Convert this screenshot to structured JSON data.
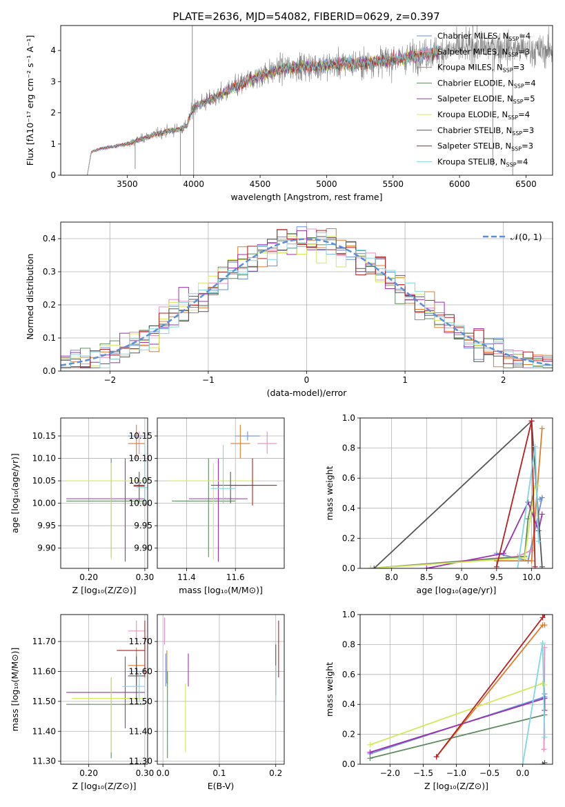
{
  "figure_title": "PLATE=2636, MJD=54082, FIBERID=0629, z=0.397",
  "series_styles": [
    {
      "name": "Chabrier MILES, N",
      "sub": "SSP",
      "tail": "=4",
      "color": "#6a8fd8"
    },
    {
      "name": "Salpeter MILES, N",
      "sub": "SSP",
      "tail": "=3",
      "color": "#e88bc0"
    },
    {
      "name": "Kroupa MILES, N",
      "sub": "SSP",
      "tail": "=3",
      "color": "#e07b2a"
    },
    {
      "name": "Chabrier ELODIE, N",
      "sub": "SSP",
      "tail": "=4",
      "color": "#5f8a5f"
    },
    {
      "name": "Salpeter ELODIE, N",
      "sub": "SSP",
      "tail": "=5",
      "color": "#9b2fae"
    },
    {
      "name": "Kroupa ELODIE, N",
      "sub": "SSP",
      "tail": "=4",
      "color": "#d4e85a"
    },
    {
      "name": "Chabrier STELIB, N",
      "sub": "SSP",
      "tail": "=3",
      "color": "#555555"
    },
    {
      "name": "Salpeter STELIB, N",
      "sub": "SSP",
      "tail": "=3",
      "color": "#b51f1f"
    },
    {
      "name": "Kroupa STELIB, N",
      "sub": "SSP",
      "tail": "=4",
      "color": "#7fd6e0"
    }
  ],
  "chart_data": [
    {
      "id": "spectrum",
      "type": "line",
      "xlabel": "wavelength [Angstrom, rest frame]",
      "ylabel": "Flux [fλ10⁻¹⁷ erg cm⁻² s⁻¹ A⁻¹]",
      "xlim": [
        3000,
        6700
      ],
      "ylim": [
        0,
        4.8
      ],
      "xticks": [
        3500,
        4000,
        4500,
        5000,
        5500,
        6000,
        6500
      ],
      "yticks": [
        0,
        1,
        2,
        3,
        4
      ],
      "grid": false,
      "legend_position": "top-right",
      "data_color": "#808080",
      "continuum": {
        "x": [
          3200,
          3230,
          3300,
          3500,
          3700,
          3900,
          3950,
          4000,
          4150,
          4300,
          4500,
          4700,
          4900,
          5100,
          5300,
          5500,
          5700,
          5900,
          6100,
          6300,
          6500
        ],
        "y": [
          0.0,
          0.75,
          0.85,
          1.0,
          1.3,
          1.5,
          1.6,
          2.2,
          2.45,
          2.8,
          3.2,
          3.45,
          3.5,
          3.55,
          3.6,
          3.7,
          3.85,
          4.0,
          4.1,
          4.1,
          4.0
        ]
      },
      "data_range": [
        3500,
        6700
      ],
      "model_range": [
        3200,
        5850
      ],
      "spikes": [
        {
          "x": 3990,
          "y": 4.8
        },
        {
          "x": 4000,
          "y": 0.0
        },
        {
          "x": 3900,
          "y": 0.0
        },
        {
          "x": 3560,
          "y": 0.2
        },
        {
          "x": 6100,
          "y": 4.8
        },
        {
          "x": 6400,
          "y": 0.0
        },
        {
          "x": 6250,
          "y": 0.3
        }
      ]
    },
    {
      "id": "residual_histogram",
      "type": "bar",
      "xlabel": "(data-model)/error",
      "ylabel": "Normed distribution",
      "xlim": [
        -2.5,
        2.5
      ],
      "ylim": [
        0,
        0.45
      ],
      "xticks": [
        -2,
        -1,
        0,
        1,
        2
      ],
      "yticks": [
        0.0,
        0.1,
        0.2,
        0.3,
        0.4
      ],
      "grid": true,
      "legend_position": "top-right",
      "bin_width": 0.1,
      "bin_start": -2.5,
      "reference": {
        "name": "𝒩(0, 1)",
        "mean": 0,
        "sigma": 1,
        "color": "#5b8dd9"
      }
    },
    {
      "id": "age_vs_Z",
      "type": "scatter",
      "xlabel": "Z [log₁₀(Z/Z⊙)]",
      "ylabel": "age  [log₁₀(age/yr)]",
      "xlim": [
        0.15,
        0.305
      ],
      "ylim": [
        9.855,
        10.19
      ],
      "xticks": [
        0.2,
        0.3
      ],
      "yticks": [
        9.9,
        9.95,
        10.0,
        10.05,
        10.1,
        10.15
      ],
      "grid": true,
      "points": [
        {
          "s": 0,
          "x": 0.285,
          "y": 10.15,
          "xe": [
            0.27,
            0.3
          ],
          "ye": [
            10.14,
            10.16
          ]
        },
        {
          "s": 1,
          "x": 0.29,
          "y": 10.133,
          "xe": [
            0.275,
            0.3
          ],
          "ye": [
            10.11,
            10.16
          ]
        },
        {
          "s": 2,
          "x": 0.285,
          "y": 10.133,
          "xe": [
            0.27,
            0.3
          ],
          "ye": [
            10.1,
            10.175
          ]
        },
        {
          "s": 3,
          "x": 0.24,
          "y": 10.005,
          "xe": [
            0.16,
            0.3
          ],
          "ye": [
            9.88,
            10.1
          ]
        },
        {
          "s": 4,
          "x": 0.265,
          "y": 10.01,
          "xe": [
            0.16,
            0.3
          ],
          "ye": [
            9.87,
            10.1
          ]
        },
        {
          "s": 5,
          "x": 0.24,
          "y": 10.05,
          "xe": [
            0.16,
            0.3
          ],
          "ye": [
            9.875,
            10.09
          ]
        },
        {
          "s": 6,
          "x": 0.29,
          "y": 10.04,
          "xe": [
            0.28,
            0.3
          ],
          "ye": [
            10.0,
            10.07
          ]
        },
        {
          "s": 7,
          "x": 0.3,
          "y": 10.038,
          "xe": [
            0.28,
            0.3
          ],
          "ye": [
            9.995,
            10.1
          ]
        },
        {
          "s": 8,
          "x": 0.3,
          "y": 10.035,
          "xe": [
            0.285,
            0.305
          ],
          "ye": [
            10.0,
            10.13
          ]
        }
      ]
    },
    {
      "id": "age_vs_mass",
      "type": "scatter",
      "xlabel": "mass [log₁₀(M/M⊙)]",
      "ylabel": "",
      "xlim": [
        11.28,
        11.8
      ],
      "ylim": [
        9.855,
        10.19
      ],
      "xticks": [
        11.4,
        11.6
      ],
      "yticks": [
        9.9,
        9.95,
        10.0,
        10.05,
        10.1,
        10.15
      ],
      "grid": true,
      "points": [
        {
          "s": 0,
          "x": 11.65,
          "y": 10.15,
          "xe": [
            11.6,
            11.7
          ],
          "ye": [
            10.14,
            10.16
          ]
        },
        {
          "s": 1,
          "x": 11.73,
          "y": 10.133,
          "xe": [
            11.69,
            11.77
          ],
          "ye": [
            10.11,
            10.16
          ]
        },
        {
          "s": 2,
          "x": 11.62,
          "y": 10.133,
          "xe": [
            11.58,
            11.66
          ],
          "ye": [
            10.1,
            10.175
          ]
        },
        {
          "s": 3,
          "x": 11.49,
          "y": 10.005,
          "xe": [
            11.34,
            11.6
          ],
          "ye": [
            9.88,
            10.1
          ]
        },
        {
          "s": 4,
          "x": 11.53,
          "y": 10.01,
          "xe": [
            11.41,
            11.65
          ],
          "ye": [
            9.87,
            10.1
          ]
        },
        {
          "s": 5,
          "x": 11.51,
          "y": 10.05,
          "xe": [
            11.33,
            11.68
          ],
          "ye": [
            9.875,
            10.09
          ]
        },
        {
          "s": 6,
          "x": 11.58,
          "y": 10.04,
          "xe": [
            11.5,
            11.65
          ],
          "ye": [
            10.0,
            10.07
          ]
        },
        {
          "s": 7,
          "x": 11.67,
          "y": 10.04,
          "xe": [
            11.58,
            11.77
          ],
          "ye": [
            9.995,
            10.1
          ]
        },
        {
          "s": 8,
          "x": 11.55,
          "y": 10.033,
          "xe": [
            11.5,
            11.6
          ],
          "ye": [
            10.0,
            10.13
          ]
        }
      ]
    },
    {
      "id": "mass_weight_vs_age",
      "type": "line",
      "xlabel": "age  [log₁₀(age/yr)]",
      "ylabel": "mass weight",
      "xlim": [
        7.55,
        10.3
      ],
      "ylim": [
        0,
        1.0
      ],
      "xticks": [
        8.0,
        8.5,
        9.0,
        9.5,
        10.0
      ],
      "yticks": [
        0.0,
        0.2,
        0.4,
        0.6,
        0.8,
        1.0
      ],
      "grid": true,
      "series": [
        {
          "s": 0,
          "x": [
            9.5,
            9.95,
            10.15,
            10.12
          ],
          "y": [
            0.1,
            0.05,
            0.47,
            0.46
          ]
        },
        {
          "s": 1,
          "x": [
            7.7,
            9.8,
            10.0
          ],
          "y": [
            0.0,
            0.08,
            0.12
          ]
        },
        {
          "s": 2,
          "x": [
            9.5,
            10.0,
            10.15
          ],
          "y": [
            0.05,
            0.05,
            0.93
          ]
        },
        {
          "s": 3,
          "x": [
            7.7,
            9.9,
            9.95,
            10.05
          ],
          "y": [
            0.0,
            0.08,
            0.33,
            0.55
          ]
        },
        {
          "s": 4,
          "x": [
            8.5,
            9.6,
            9.95,
            10.1,
            10.15
          ],
          "y": [
            0.0,
            0.1,
            0.44,
            0.25,
            0.36
          ]
        },
        {
          "s": 5,
          "x": [
            7.7,
            9.9,
            10.05,
            10.08
          ],
          "y": [
            0.0,
            0.07,
            0.55,
            0.55
          ]
        },
        {
          "s": 6,
          "x": [
            7.75,
            10.0,
            10.15
          ],
          "y": [
            0.0,
            0.98,
            0.01
          ]
        },
        {
          "s": 7,
          "x": [
            9.5,
            10.0,
            10.05
          ],
          "y": [
            0.01,
            0.98,
            0.01
          ]
        },
        {
          "s": 8,
          "x": [
            9.8,
            10.05,
            10.1
          ],
          "y": [
            0.0,
            0.81,
            0.18
          ]
        }
      ]
    },
    {
      "id": "mass_vs_Z",
      "type": "scatter",
      "xlabel": "Z [log₁₀(Z/Z⊙)]",
      "ylabel": "mass [log₁₀(M/M⊙)]",
      "xlim": [
        0.15,
        0.305
      ],
      "ylim": [
        11.29,
        11.79
      ],
      "xticks": [
        0.2,
        0.3
      ],
      "yticks": [
        11.3,
        11.4,
        11.5,
        11.6,
        11.7
      ],
      "grid": true,
      "points": [
        {
          "s": 0,
          "x": 0.285,
          "y": 11.6,
          "xe": [
            0.27,
            0.3
          ],
          "ye": [
            11.55,
            11.66
          ]
        },
        {
          "s": 1,
          "x": 0.285,
          "y": 11.735,
          "xe": [
            0.27,
            0.3
          ],
          "ye": [
            11.7,
            11.77
          ]
        },
        {
          "s": 2,
          "x": 0.285,
          "y": 11.62,
          "xe": [
            0.27,
            0.3
          ],
          "ye": [
            11.56,
            11.68
          ]
        },
        {
          "s": 3,
          "x": 0.24,
          "y": 11.49,
          "xe": [
            0.16,
            0.3
          ],
          "ye": [
            11.31,
            11.58
          ]
        },
        {
          "s": 4,
          "x": 0.265,
          "y": 11.53,
          "xe": [
            0.16,
            0.3
          ],
          "ye": [
            11.41,
            11.65
          ]
        },
        {
          "s": 5,
          "x": 0.24,
          "y": 11.51,
          "xe": [
            0.17,
            0.3
          ],
          "ye": [
            11.33,
            11.58
          ]
        },
        {
          "s": 6,
          "x": 0.285,
          "y": 11.585,
          "xe": [
            0.27,
            0.3
          ],
          "ye": [
            11.5,
            11.65
          ]
        },
        {
          "s": 7,
          "x": 0.3,
          "y": 11.67,
          "xe": [
            0.25,
            0.3
          ],
          "ye": [
            11.58,
            11.77
          ]
        },
        {
          "s": 8,
          "x": 0.29,
          "y": 11.55,
          "xe": [
            0.26,
            0.3
          ],
          "ye": [
            11.5,
            11.6
          ]
        }
      ]
    },
    {
      "id": "mass_vs_ebv",
      "type": "scatter",
      "xlabel": "E(B-V)",
      "ylabel": "",
      "xlim": [
        -0.01,
        0.215
      ],
      "ylim": [
        11.29,
        11.79
      ],
      "xticks": [
        0.0,
        0.1,
        0.2
      ],
      "yticks": [
        11.3,
        11.4,
        11.5,
        11.6,
        11.7
      ],
      "grid": true,
      "points": [
        {
          "s": 0,
          "x": 0.005,
          "y": 11.6,
          "ye": [
            11.55,
            11.66
          ]
        },
        {
          "s": 1,
          "x": 0.003,
          "y": 11.73,
          "ye": [
            11.69,
            11.78
          ]
        },
        {
          "s": 2,
          "x": 0.007,
          "y": 11.62,
          "ye": [
            11.56,
            11.67
          ]
        },
        {
          "s": 3,
          "x": 0.008,
          "y": 11.45,
          "ye": [
            11.31,
            11.6
          ]
        },
        {
          "s": 4,
          "x": 0.045,
          "y": 11.6,
          "ye": [
            11.55,
            11.66
          ]
        },
        {
          "s": 5,
          "x": 0.04,
          "y": 11.45,
          "ye": [
            11.33,
            11.56
          ]
        },
        {
          "s": 6,
          "x": 0.2,
          "y": 11.6,
          "ye": [
            11.52,
            11.69
          ]
        },
        {
          "s": 7,
          "x": 0.205,
          "y": 11.68,
          "ye": [
            11.58,
            11.77
          ]
        },
        {
          "s": 8,
          "x": 0.2,
          "y": 11.56,
          "ye": [
            11.5,
            11.62
          ]
        }
      ]
    },
    {
      "id": "mass_weight_vs_Z",
      "type": "line",
      "xlabel": "Z [log₁₀(Z/Z⊙)]",
      "ylabel": "mass weight",
      "xlim": [
        -2.45,
        0.45
      ],
      "ylim": [
        0,
        1.0
      ],
      "xticks": [
        -2.0,
        -1.5,
        -1.0,
        -0.5,
        0.0
      ],
      "yticks": [
        0.0,
        0.2,
        0.4,
        0.6,
        0.8,
        1.0
      ],
      "grid": true,
      "series": [
        {
          "s": 0,
          "x": [
            -2.3,
            0.33,
            0.33
          ],
          "y": [
            0.07,
            0.45,
            0.47
          ]
        },
        {
          "s": 1,
          "x": [
            0.32,
            0.33
          ],
          "y": [
            0.1,
            0.78
          ]
        },
        {
          "s": 2,
          "x": [
            -1.3,
            0.3,
            0.33
          ],
          "y": [
            0.05,
            0.93,
            0.93
          ]
        },
        {
          "s": 3,
          "x": [
            -2.3,
            0.33
          ],
          "y": [
            0.04,
            0.33
          ]
        },
        {
          "s": 4,
          "x": [
            -2.3,
            0.33,
            0.33
          ],
          "y": [
            0.08,
            0.44,
            0.36
          ]
        },
        {
          "s": 5,
          "x": [
            -2.3,
            0.3,
            0.33
          ],
          "y": [
            0.13,
            0.54,
            0.53
          ]
        },
        {
          "s": 6,
          "x": [
            0.3,
            0.33
          ],
          "y": [
            0.0,
            0.01
          ]
        },
        {
          "s": 7,
          "x": [
            -1.3,
            0.3,
            0.33
          ],
          "y": [
            0.05,
            0.98,
            1.0
          ]
        },
        {
          "s": 8,
          "x": [
            0.0,
            0.3,
            0.33
          ],
          "y": [
            0.0,
            0.81,
            0.18
          ]
        }
      ]
    }
  ]
}
